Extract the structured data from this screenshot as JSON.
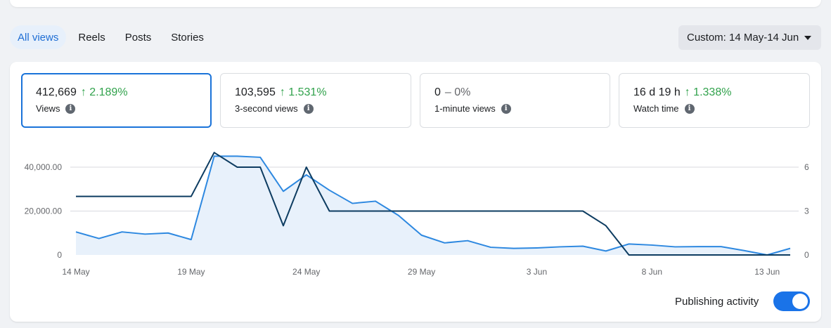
{
  "tabs": [
    {
      "label": "All views",
      "active": true
    },
    {
      "label": "Reels",
      "active": false
    },
    {
      "label": "Posts",
      "active": false
    },
    {
      "label": "Stories",
      "active": false
    }
  ],
  "date_range": {
    "label": "Custom: 14 May-14 Jun",
    "icon": "caret-down-icon"
  },
  "metrics": [
    {
      "value": "412,669",
      "delta": "↑ 2.189%",
      "label": "Views",
      "selected": true
    },
    {
      "value": "103,595",
      "delta": "↑ 1.531%",
      "label": "3-second views",
      "selected": false
    },
    {
      "value": "0",
      "delta": "– 0%",
      "label": "1-minute views",
      "selected": false
    },
    {
      "value": "16 d 19 h",
      "delta": "↑ 1.338%",
      "label": "Watch time",
      "selected": false
    }
  ],
  "info_glyph": "i",
  "publishing": {
    "label": "Publishing activity",
    "enabled": true
  },
  "colors": {
    "accent": "#1a73e8",
    "views_line": "#2d88e0",
    "views_fill": "#e8f1fb",
    "activity_line": "#0d3c61",
    "positive": "#31a24c"
  },
  "chart_data": {
    "type": "line",
    "x": [
      "14 May",
      "15 May",
      "16 May",
      "17 May",
      "18 May",
      "19 May",
      "20 May",
      "21 May",
      "22 May",
      "23 May",
      "24 May",
      "25 May",
      "26 May",
      "27 May",
      "28 May",
      "29 May",
      "30 May",
      "31 May",
      "1 Jun",
      "2 Jun",
      "3 Jun",
      "4 Jun",
      "5 Jun",
      "6 Jun",
      "7 Jun",
      "8 Jun",
      "9 Jun",
      "10 Jun",
      "11 Jun",
      "12 Jun",
      "13 Jun",
      "14 Jun"
    ],
    "x_tick_labels": [
      "14 May",
      "19 May",
      "24 May",
      "29 May",
      "3 Jun",
      "8 Jun",
      "13 Jun"
    ],
    "y_left_ticks": [
      "0",
      "20,000.00",
      "40,000.00"
    ],
    "y_right_ticks": [
      "0",
      "3",
      "6"
    ],
    "ylim_left": [
      0,
      40000
    ],
    "ylim_right": [
      0,
      6
    ],
    "grid": true,
    "series": [
      {
        "axis": "left",
        "style": "area",
        "values": [
          10500,
          7500,
          10500,
          9500,
          10000,
          7000,
          45000,
          45000,
          44500,
          29000,
          36500,
          29500,
          23500,
          24500,
          18000,
          9000,
          5500,
          6500,
          3500,
          3000,
          3200,
          3700,
          4000,
          1800,
          5000,
          4500,
          3700,
          3800,
          3800,
          2000,
          0,
          3000
        ]
      },
      {
        "axis": "right",
        "style": "line",
        "values": [
          4,
          4,
          4,
          4,
          4,
          4,
          7,
          6,
          6,
          2,
          6,
          3,
          3,
          3,
          3,
          3,
          3,
          3,
          3,
          3,
          3,
          3,
          3,
          2,
          0,
          0,
          0,
          0,
          0,
          0,
          0,
          0
        ]
      }
    ]
  }
}
